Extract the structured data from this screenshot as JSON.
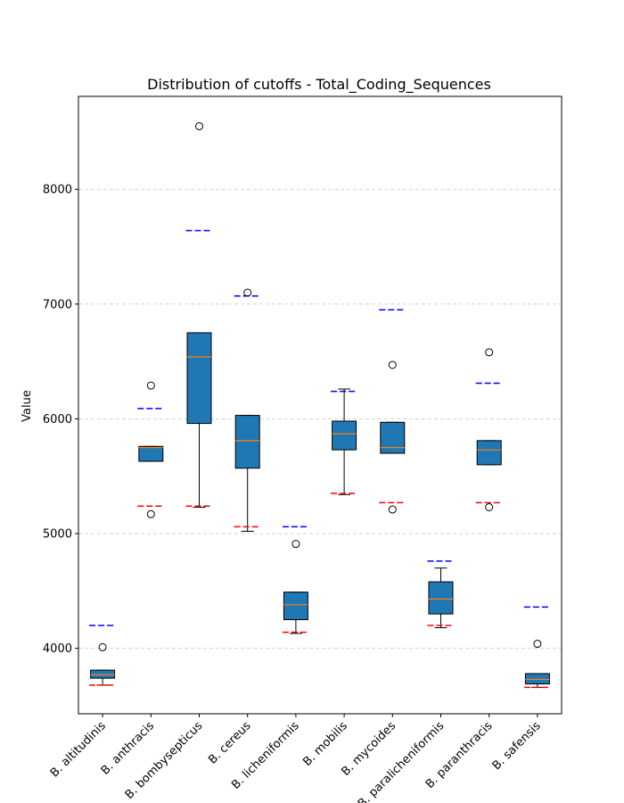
{
  "chart_data": {
    "type": "boxplot",
    "title": "Distribution of cutoffs - Total_Coding_Sequences",
    "xlabel": "",
    "ylabel": "Value",
    "ylim": [
      3430,
      8810
    ],
    "yticks": [
      4000,
      5000,
      6000,
      7000,
      8000
    ],
    "grid": "horizontal dashed",
    "colors": {
      "box_fill": "#1f77b4",
      "median": "#ff7f0e",
      "upper_cutoff": "#0000ff",
      "lower_cutoff": "#ff0000",
      "grid": "#cccccc"
    },
    "categories": [
      "B. altitudinis",
      "B. anthracis",
      "B. bombysepticus",
      "B. cereus",
      "B. licheniformis",
      "B. mobilis",
      "B. mycoides",
      "B. paralicheniformis",
      "B. paranthracis",
      "B. safensis"
    ],
    "boxes": [
      {
        "whisker_low": 3680,
        "q1": 3740,
        "median": 3770,
        "q3": 3810,
        "whisker_high": 3810,
        "outliers": [
          4010
        ],
        "upper_cutoff": 4200,
        "lower_cutoff": 3680
      },
      {
        "whisker_low": 5630,
        "q1": 5630,
        "median": 5750,
        "q3": 5760,
        "whisker_high": 5760,
        "outliers": [
          6290,
          5170
        ],
        "upper_cutoff": 6090,
        "lower_cutoff": 5240
      },
      {
        "whisker_low": 5230,
        "q1": 5960,
        "median": 6540,
        "q3": 6750,
        "whisker_high": 6750,
        "outliers": [
          8550
        ],
        "upper_cutoff": 7640,
        "lower_cutoff": 5240
      },
      {
        "whisker_low": 5020,
        "q1": 5570,
        "median": 5810,
        "q3": 6030,
        "whisker_high": 6030,
        "outliers": [
          7100
        ],
        "upper_cutoff": 7070,
        "lower_cutoff": 5060
      },
      {
        "whisker_low": 4130,
        "q1": 4250,
        "median": 4380,
        "q3": 4490,
        "whisker_high": 4490,
        "outliers": [
          4910
        ],
        "upper_cutoff": 5060,
        "lower_cutoff": 4140
      },
      {
        "whisker_low": 5340,
        "q1": 5730,
        "median": 5870,
        "q3": 5980,
        "whisker_high": 6260,
        "outliers": [],
        "upper_cutoff": 6240,
        "lower_cutoff": 5350
      },
      {
        "whisker_low": 5700,
        "q1": 5700,
        "median": 5750,
        "q3": 5970,
        "whisker_high": 5970,
        "outliers": [
          6470,
          5210
        ],
        "upper_cutoff": 6950,
        "lower_cutoff": 5270
      },
      {
        "whisker_low": 4180,
        "q1": 4300,
        "median": 4430,
        "q3": 4580,
        "whisker_high": 4700,
        "outliers": [],
        "upper_cutoff": 4760,
        "lower_cutoff": 4200
      },
      {
        "whisker_low": 5600,
        "q1": 5600,
        "median": 5730,
        "q3": 5810,
        "whisker_high": 5810,
        "outliers": [
          6580,
          5230
        ],
        "upper_cutoff": 6310,
        "lower_cutoff": 5270
      },
      {
        "whisker_low": 3660,
        "q1": 3690,
        "median": 3730,
        "q3": 3780,
        "whisker_high": 3780,
        "outliers": [
          4040
        ],
        "upper_cutoff": 4360,
        "lower_cutoff": 3660
      }
    ]
  }
}
